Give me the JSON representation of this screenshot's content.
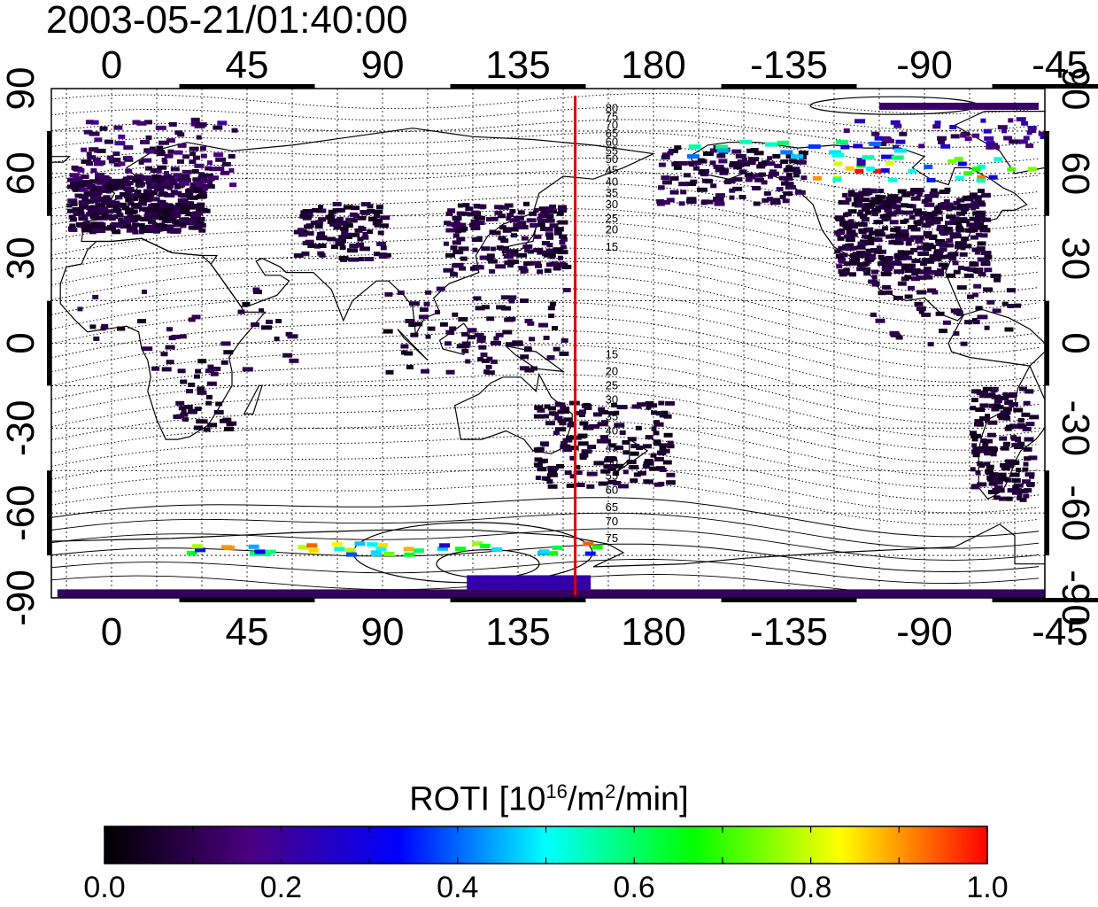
{
  "title": "2003-05-21/01:40:00",
  "map": {
    "x_axis_tick_labels": [
      "0",
      "45",
      "90",
      "135",
      "180",
      "-135",
      "-90",
      "-45"
    ],
    "y_axis_tick_labels_left": [
      "90",
      "60",
      "30",
      "0",
      "-30",
      "-60",
      "-90"
    ],
    "y_axis_tick_labels_right": [
      "90",
      "60",
      "30",
      "0",
      "-30",
      "-60",
      "-90"
    ],
    "lon_range": [
      -20,
      310
    ],
    "lat_range": [
      -90,
      90
    ],
    "grid": true,
    "meridian_marker": {
      "lon": 154,
      "color": "#e00000"
    },
    "contour_labels_north": [
      "80",
      "75",
      "70",
      "65",
      "60",
      "55",
      "50",
      "45",
      "40",
      "35",
      "30",
      "25",
      "20",
      "15"
    ],
    "contour_labels_south": [
      "15",
      "20",
      "25",
      "30",
      "35",
      "40",
      "45",
      "50",
      "55",
      "60",
      "65",
      "70",
      "75"
    ]
  },
  "colorbar": {
    "label": "ROTI  [10",
    "label_sup1": "16",
    "label_mid": "/m",
    "label_sup2": "2",
    "label_end": "/min]",
    "ticks": [
      "0.0",
      "0.2",
      "0.4",
      "0.6",
      "0.8",
      "1.0"
    ],
    "range": [
      0.0,
      1.0
    ],
    "colors": [
      "#000000",
      "#4b0082",
      "#0000ff",
      "#00ffff",
      "#00ff00",
      "#ffff00",
      "#ff0000"
    ]
  }
}
